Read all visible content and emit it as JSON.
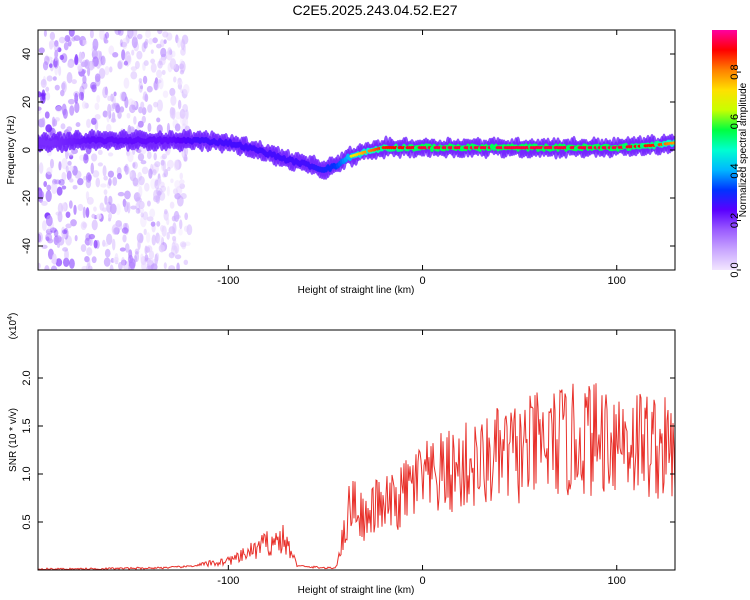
{
  "title": "C2E5.2025.243.04.52.E27",
  "colors": {
    "frame": "#000000",
    "snr_line": "#e8302a",
    "background": "#ffffff",
    "colormap": [
      "#f2e6ff",
      "#c9a6ff",
      "#9b5cff",
      "#5a00ff",
      "#0033ff",
      "#00b7ff",
      "#00ffd0",
      "#00ff40",
      "#c8ff00",
      "#ffe000",
      "#ff8000",
      "#ff0000",
      "#ff00a0"
    ]
  },
  "chart_data": [
    {
      "type": "heatmap",
      "name": "spectrogram",
      "title": "",
      "xlabel": "Height of straight line (km)",
      "ylabel": "Frequency (Hz)",
      "xlim": [
        -198,
        130
      ],
      "ylim": [
        -50,
        50
      ],
      "xticks": [
        -100,
        0,
        100
      ],
      "yticks": [
        -40,
        -20,
        0,
        20,
        40
      ],
      "colorbar": {
        "label": "Normalized spectral amplitude",
        "range": [
          0.0,
          0.97
        ],
        "ticks": [
          0.0,
          0.2,
          0.4,
          0.6,
          0.8
        ]
      },
      "ridge": {
        "x": [
          -190,
          -170,
          -150,
          -130,
          -115,
          -100,
          -85,
          -70,
          -60,
          -52,
          -45,
          -38,
          -30,
          -20,
          0,
          20,
          40,
          60,
          80,
          100,
          120,
          130
        ],
        "freq": [
          3,
          4,
          4,
          4,
          4,
          3,
          0,
          -4,
          -6,
          -8,
          -7,
          -3,
          -1,
          1,
          1,
          1,
          1,
          1,
          1,
          1,
          2,
          3
        ],
        "amplitude": [
          0.35,
          0.4,
          0.4,
          0.4,
          0.45,
          0.45,
          0.45,
          0.45,
          0.45,
          0.5,
          0.55,
          0.7,
          0.8,
          0.9,
          0.95,
          0.95,
          0.95,
          0.95,
          0.95,
          0.95,
          0.9,
          0.8
        ]
      },
      "noise_region_x": [
        -198,
        -120
      ]
    },
    {
      "type": "line",
      "name": "snr",
      "title": "",
      "xlabel": "Height of straight line (km)",
      "ylabel": "SNR (10 * v/v)",
      "y_multiplier_label": "(x10",
      "y_multiplier_exponent": "4",
      "y_multiplier_close": ")",
      "xlim": [
        -198,
        130
      ],
      "ylim": [
        0,
        2.5
      ],
      "xticks": [
        -100,
        0,
        100
      ],
      "yticks": [
        0.5,
        1.0,
        1.5,
        2.0
      ],
      "ytick_labels": [
        "0.5",
        "1.0",
        "1.5",
        "2.0"
      ],
      "series": [
        {
          "name": "SNR",
          "x": [
            -198,
            -180,
            -160,
            -140,
            -125,
            -115,
            -105,
            -95,
            -90,
            -85,
            -80,
            -76,
            -72,
            -68,
            -65,
            -60,
            -55,
            -50,
            -45,
            -40,
            -38,
            -35,
            -33,
            -30,
            -28,
            -25,
            -22,
            -20,
            -18,
            -15,
            -12,
            -10,
            -5,
            0,
            5,
            10,
            15,
            20,
            25,
            30,
            35,
            40,
            45,
            50,
            55,
            60,
            65,
            70,
            75,
            80,
            85,
            90,
            95,
            100,
            105,
            110,
            115,
            120,
            125,
            130
          ],
          "values": [
            0.01,
            0.01,
            0.015,
            0.02,
            0.03,
            0.05,
            0.08,
            0.12,
            0.18,
            0.22,
            0.28,
            0.3,
            0.32,
            0.2,
            0.06,
            0.03,
            0.03,
            0.02,
            0.02,
            0.4,
            0.62,
            0.75,
            0.6,
            0.55,
            0.5,
            0.65,
            0.7,
            0.55,
            0.72,
            0.68,
            0.7,
            0.8,
            0.88,
            0.95,
            0.92,
            1.0,
            1.02,
            1.05,
            1.1,
            1.08,
            1.15,
            1.18,
            1.2,
            1.22,
            1.25,
            1.3,
            1.28,
            1.35,
            1.3,
            1.38,
            1.4,
            1.35,
            1.42,
            1.4,
            1.38,
            1.35,
            1.32,
            1.3,
            1.25,
            1.2
          ]
        }
      ]
    }
  ]
}
